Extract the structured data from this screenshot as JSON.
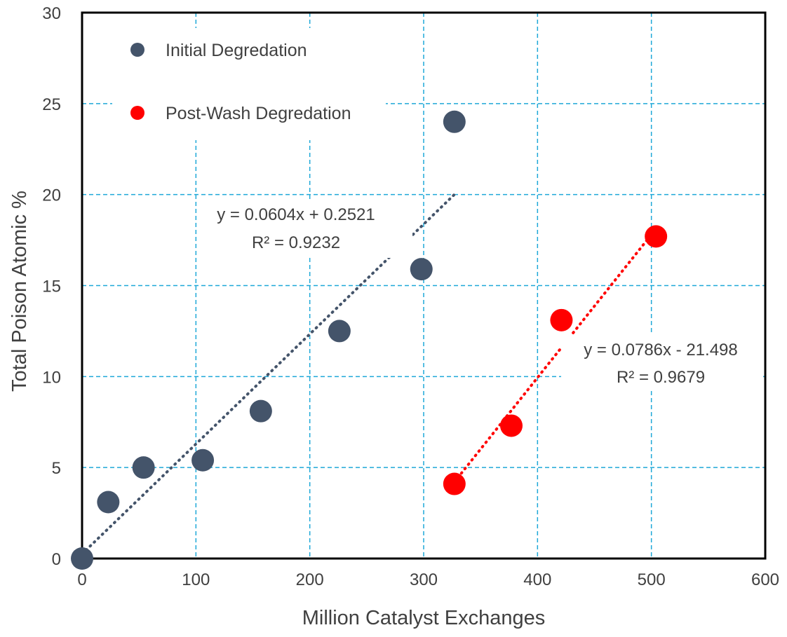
{
  "chart_data": {
    "type": "scatter",
    "xlabel": "Million Catalyst Exchanges",
    "ylabel": "Total Poison Atomic %",
    "xlim": [
      0,
      600
    ],
    "ylim": [
      0,
      30
    ],
    "x_ticks": [
      "0",
      "100",
      "200",
      "300",
      "400",
      "500",
      "600"
    ],
    "y_ticks": [
      "0",
      "5",
      "10",
      "15",
      "20",
      "25",
      "30"
    ],
    "grid": true,
    "legend_position": "top-left",
    "series": [
      {
        "name": "Initial Degredation",
        "color": "#44546a",
        "points": [
          {
            "x": 0,
            "y": 0
          },
          {
            "x": 23,
            "y": 3.1
          },
          {
            "x": 54,
            "y": 5.0
          },
          {
            "x": 106,
            "y": 5.4
          },
          {
            "x": 157,
            "y": 8.1
          },
          {
            "x": 226,
            "y": 12.5
          },
          {
            "x": 298,
            "y": 15.9
          },
          {
            "x": 327,
            "y": 24.0
          }
        ],
        "trendline": {
          "slope": 0.0604,
          "intercept": 0.2521,
          "x_range": [
            0,
            327
          ],
          "equation": "y = 0.0604x + 0.2521",
          "r2": "R² = 0.9232"
        }
      },
      {
        "name": "Post-Wash Degredation",
        "color": "#ff0000",
        "points": [
          {
            "x": 327,
            "y": 4.1
          },
          {
            "x": 377,
            "y": 7.3
          },
          {
            "x": 421,
            "y": 13.1
          },
          {
            "x": 504,
            "y": 17.7
          }
        ],
        "trendline": {
          "slope": 0.0786,
          "intercept": -21.498,
          "x_range": [
            327,
            504
          ],
          "equation": "y = 0.0786x - 21.498",
          "r2": "R² = 0.9679"
        }
      }
    ]
  },
  "colors": {
    "grid": "#1ea8d8",
    "axis": "#000000",
    "text": "#404040"
  }
}
